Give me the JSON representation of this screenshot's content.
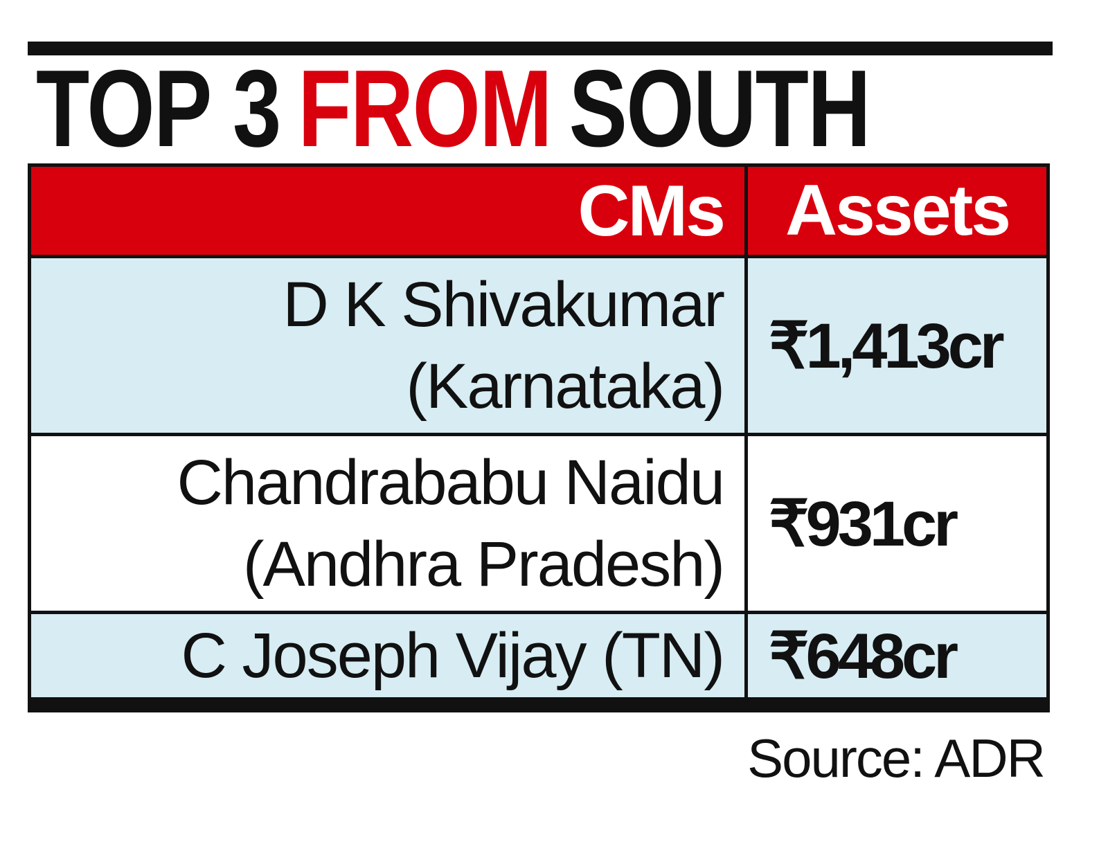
{
  "title": {
    "parts": [
      "TOP 3",
      "FROM",
      "SOUTH"
    ],
    "highlight_color": "#d9000d"
  },
  "table": {
    "header": [
      "CMs",
      "Assets"
    ],
    "rows": [
      {
        "name": [
          "D K Shivakumar",
          "(Karnataka)"
        ],
        "assets": "₹1,413cr"
      },
      {
        "name": [
          "Chandrababu Naidu",
          "(Andhra Pradesh)"
        ],
        "assets": "₹931cr"
      },
      {
        "name": [
          "C Joseph Vijay (TN)"
        ],
        "assets": "₹648cr"
      }
    ]
  },
  "source": "Source: ADR"
}
